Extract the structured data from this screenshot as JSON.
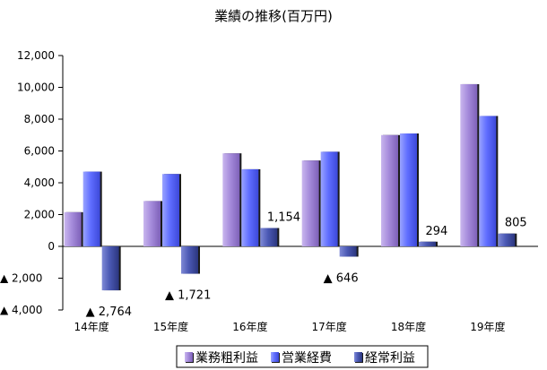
{
  "chart_data": {
    "type": "bar",
    "title": "業績の推移(百万円)",
    "categories": [
      "14年度",
      "15年度",
      "16年度",
      "17年度",
      "18年度",
      "19年度"
    ],
    "ylim": [
      -4000,
      12000
    ],
    "yticks": [
      12000,
      10000,
      8000,
      6000,
      4000,
      2000,
      0,
      -2000,
      -4000
    ],
    "ytick_labels": [
      "12,000",
      "10,000",
      "8,000",
      "6,000",
      "4,000",
      "2,000",
      "0",
      "▲ 2,000",
      "▲ 4,000"
    ],
    "series": [
      {
        "name": "業務粗利益",
        "values": [
          2150,
          2850,
          5850,
          5400,
          7000,
          10200
        ],
        "color": "#9c7fd0"
      },
      {
        "name": "営業経費",
        "values": [
          4700,
          4550,
          4850,
          5950,
          7100,
          8200
        ],
        "color": "#5b6bff"
      },
      {
        "name": "経常利益",
        "values": [
          -2764,
          -1721,
          1154,
          -646,
          294,
          805
        ],
        "color": "#3a4aa0"
      }
    ],
    "data_labels": [
      {
        "category": "14年度",
        "series": "経常利益",
        "text": "▲ 2,764"
      },
      {
        "category": "15年度",
        "series": "経常利益",
        "text": "▲ 1,721"
      },
      {
        "category": "16年度",
        "series": "経常利益",
        "text": "1,154"
      },
      {
        "category": "17年度",
        "series": "経常利益",
        "text": "▲ 646"
      },
      {
        "category": "18年度",
        "series": "経常利益",
        "text": "294"
      },
      {
        "category": "19年度",
        "series": "経常利益",
        "text": "805"
      }
    ],
    "legend_position": "bottom",
    "grid": false
  }
}
